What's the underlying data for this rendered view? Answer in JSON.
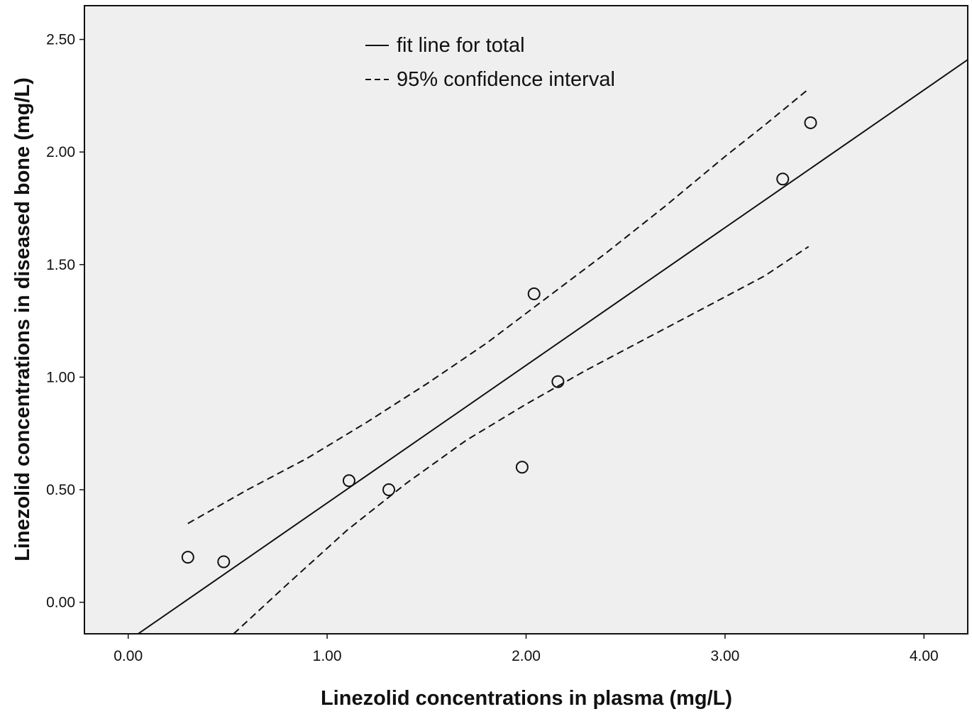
{
  "chart_data": {
    "type": "scatter",
    "title": "",
    "xlabel": "Linezolid concentrations in plasma (mg/L)",
    "ylabel": "Linezolid concentrations in diseased bone (mg/L)",
    "xlim": [
      -0.22,
      4.22
    ],
    "ylim": [
      -0.14,
      2.65
    ],
    "x_ticks": [
      0,
      1,
      2,
      3,
      4
    ],
    "x_tick_labels": [
      "0.00",
      "1.00",
      "2.00",
      "3.00",
      "4.00"
    ],
    "y_ticks": [
      0,
      0.5,
      1,
      1.5,
      2,
      2.5
    ],
    "y_tick_labels": [
      "0.00",
      "0.50",
      "1.00",
      "1.50",
      "2.00",
      "2.50"
    ],
    "grid": false,
    "legend_position": "top-left",
    "background_color": "#efefef",
    "series": [
      {
        "kind": "points",
        "marker": "open-circle",
        "points": [
          {
            "x": 0.3,
            "y": 0.2
          },
          {
            "x": 0.48,
            "y": 0.18
          },
          {
            "x": 1.11,
            "y": 0.54
          },
          {
            "x": 1.31,
            "y": 0.5
          },
          {
            "x": 1.98,
            "y": 0.6
          },
          {
            "x": 2.04,
            "y": 1.37
          },
          {
            "x": 2.16,
            "y": 0.98
          },
          {
            "x": 3.29,
            "y": 1.88
          },
          {
            "x": 3.43,
            "y": 2.13
          }
        ]
      },
      {
        "name": "fit line for total",
        "kind": "line",
        "style": "solid",
        "x": [
          0.05,
          4.22
        ],
        "y": [
          -0.14,
          2.41
        ]
      },
      {
        "name": "95% confidence interval",
        "kind": "line",
        "style": "dashed",
        "x": [
          0.3,
          0.6,
          0.9,
          1.2,
          1.5,
          1.8,
          2.1,
          2.4,
          2.7,
          3.0,
          3.2,
          3.42
        ],
        "y": [
          0.35,
          0.5,
          0.64,
          0.8,
          0.97,
          1.15,
          1.35,
          1.55,
          1.76,
          1.98,
          2.12,
          2.28
        ]
      },
      {
        "kind": "line",
        "style": "dashed",
        "x": [
          0.53,
          0.8,
          1.1,
          1.4,
          1.7,
          2.0,
          2.3,
          2.6,
          2.9,
          3.2,
          3.42
        ],
        "y": [
          -0.14,
          0.08,
          0.32,
          0.53,
          0.72,
          0.88,
          1.03,
          1.17,
          1.31,
          1.45,
          1.58
        ]
      }
    ],
    "legend": [
      {
        "symbol": "—",
        "label": "fit line for total"
      },
      {
        "symbol": "---",
        "label": "95% confidence interval"
      }
    ]
  }
}
